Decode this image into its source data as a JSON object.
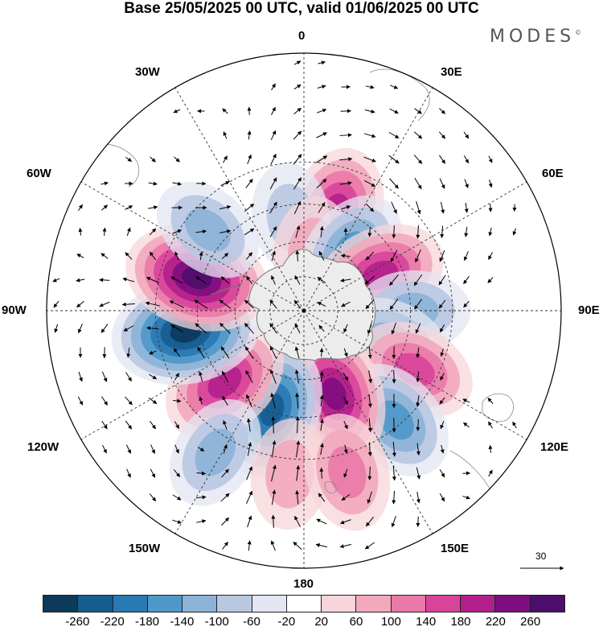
{
  "title": "Base 25/05/2025 00 UTC, valid 01/06/2025 00 UTC",
  "logo": {
    "text": "MODES",
    "mark": "©"
  },
  "longitude_labels": {
    "top": "0",
    "top_right": "30E",
    "right_upper": "60E",
    "right": "90E",
    "right_lower": "120E",
    "bottom_right": "150E",
    "bottom": "180",
    "bottom_left": "150W",
    "left_lower": "120W",
    "left": "90W",
    "left_upper": "60W",
    "top_left": "30W"
  },
  "reference_vector": {
    "label": "30"
  },
  "colorbar": {
    "colors": [
      "#0b3a5b",
      "#165d8f",
      "#2a79b3",
      "#4e98c9",
      "#8cb2d7",
      "#b9c8e2",
      "#e3e5f2",
      "#ffffff",
      "#f7d5da",
      "#f2a9bc",
      "#ea79a9",
      "#d9449b",
      "#b21f8b",
      "#7f0d7f",
      "#4f0d6d"
    ],
    "tick_labels": [
      "-260",
      "-220",
      "-180",
      "-140",
      "-100",
      "-60",
      "-20",
      "20",
      "60",
      "100",
      "140",
      "180",
      "220",
      "260"
    ]
  },
  "anomaly_centers": [
    {
      "lon": 18,
      "lat": -46,
      "value": 160
    },
    {
      "lon": -8,
      "lat": -50,
      "value": -60
    },
    {
      "lon": 8,
      "lat": -64,
      "value": 60
    },
    {
      "lon": 38,
      "lat": -57,
      "value": -120
    },
    {
      "lon": 65,
      "lat": -54,
      "value": 180
    },
    {
      "lon": 90,
      "lat": -44,
      "value": -80
    },
    {
      "lon": 110,
      "lat": -51,
      "value": -100
    },
    {
      "lon": 118,
      "lat": -38,
      "value": 120
    },
    {
      "lon": 140,
      "lat": -32,
      "value": -140
    },
    {
      "lon": 160,
      "lat": -52,
      "value": 200
    },
    {
      "lon": -162,
      "lat": -46,
      "value": -200
    },
    {
      "lon": -132,
      "lat": -45,
      "value": 180
    },
    {
      "lon": -100,
      "lat": -40,
      "value": -260
    },
    {
      "lon": -73,
      "lat": -43,
      "value": 240
    },
    {
      "lon": -50,
      "lat": -38,
      "value": -80
    },
    {
      "lon": -148,
      "lat": -24,
      "value": -80
    },
    {
      "lon": -175,
      "lat": -25,
      "value": 60
    },
    {
      "lon": 165,
      "lat": -24,
      "value": 100
    }
  ]
}
